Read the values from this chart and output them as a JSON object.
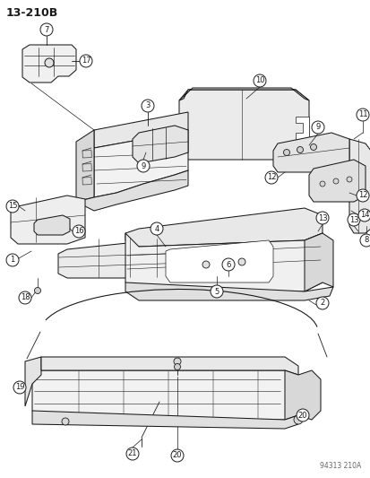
{
  "title": "13-210B",
  "bg_color": "#ffffff",
  "dc": "#1a1a1a",
  "lc": "#555555",
  "watermark": "94313 210A",
  "fig_width": 4.14,
  "fig_height": 5.33,
  "dpi": 100
}
